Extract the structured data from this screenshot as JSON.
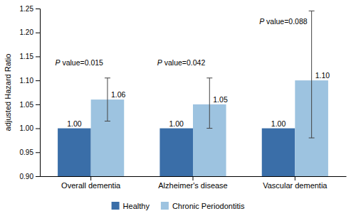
{
  "chart_data": {
    "type": "bar",
    "categories": [
      "Overall dementia",
      "Alzheimer's disease",
      "Vascular dementia"
    ],
    "series": [
      {
        "name": "Healthy",
        "color": "#3A6EA8",
        "values": [
          1.0,
          1.0,
          1.0
        ],
        "value_labels": [
          "1.00",
          "1.00",
          "1.00"
        ]
      },
      {
        "name": "Chronic Periodontitis",
        "color": "#9DC3E0",
        "values": [
          1.06,
          1.05,
          1.1
        ],
        "value_labels": [
          "1.06",
          "1.05",
          "1.10"
        ],
        "error_lower": [
          0.045,
          0.05,
          0.12
        ],
        "error_upper": [
          0.045,
          0.055,
          0.145
        ]
      }
    ],
    "y_label": "adjusted Hazard Ratio",
    "ylim": [
      0.9,
      1.25
    ],
    "yticks": [
      {
        "value": 0.9,
        "label": "0.90"
      },
      {
        "value": 0.95,
        "label": "0.95"
      },
      {
        "value": 1.0,
        "label": "1.00"
      },
      {
        "value": 1.05,
        "label": "1.05"
      },
      {
        "value": 1.1,
        "label": "1.10"
      },
      {
        "value": 1.15,
        "label": "1.15"
      },
      {
        "value": 1.2,
        "label": "1.20"
      },
      {
        "value": 1.25,
        "label": "1.25"
      }
    ],
    "annotations": [
      {
        "text": "P value=0.015",
        "category": "Overall dementia",
        "y": 1.128
      },
      {
        "text": "P value=0.042",
        "category": "Alzheimer's disease",
        "y": 1.128
      },
      {
        "text": "P value=0.088",
        "category": "Vascular dementia",
        "y": 1.215
      }
    ],
    "data_labels": true,
    "grid": false,
    "legend": "bottom"
  }
}
